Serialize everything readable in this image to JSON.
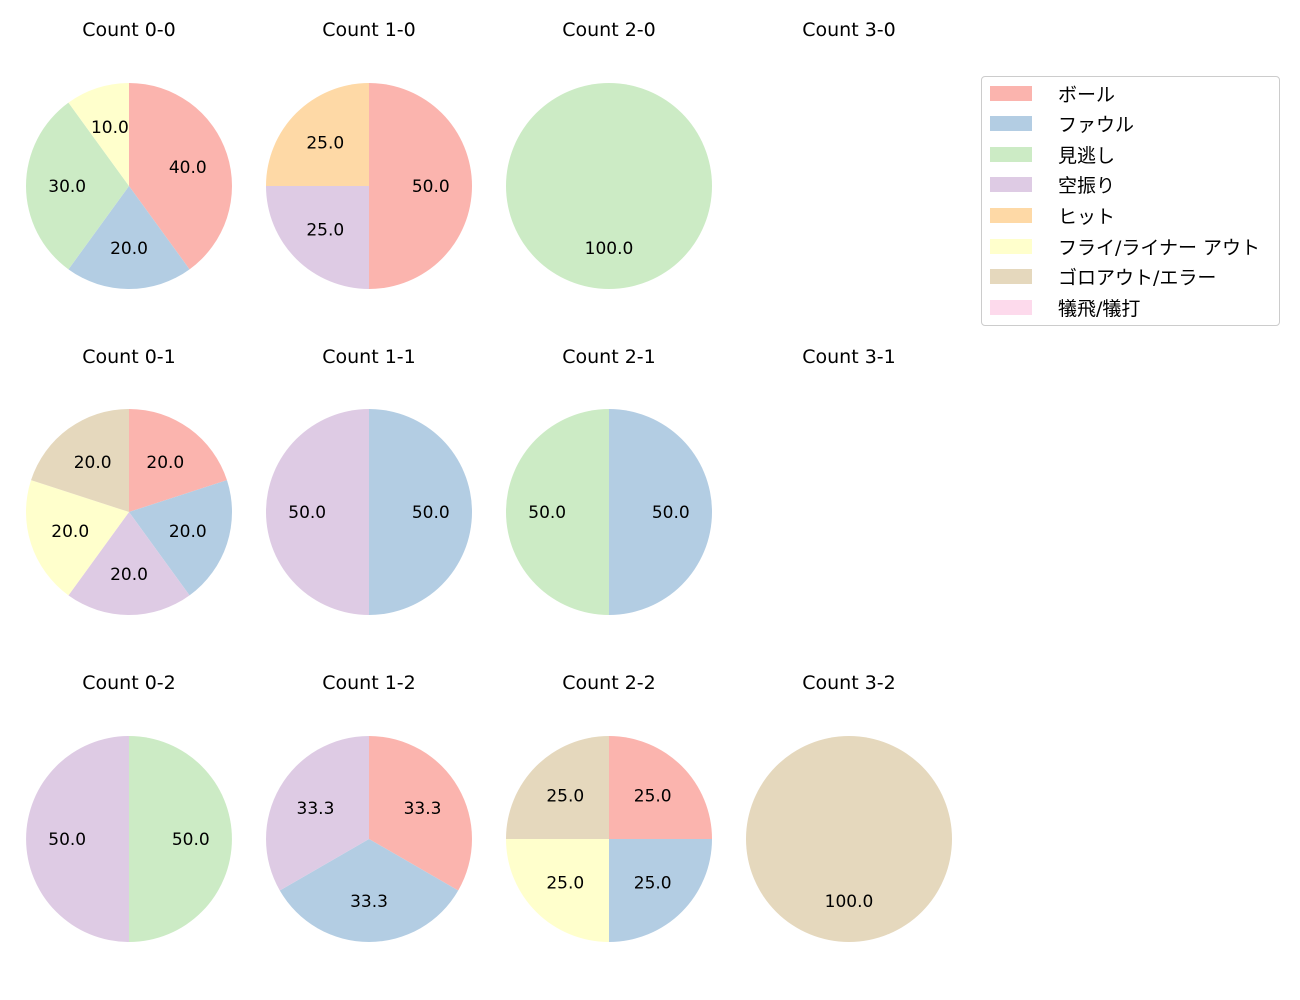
{
  "chart_data": {
    "type": "pie",
    "legend": {
      "position": "right",
      "entries": [
        "ボール",
        "ファウル",
        "見逃し",
        "空振り",
        "ヒット",
        "フライ/ライナー アウト",
        "ゴロアウト/エラー",
        "犠飛/犠打"
      ]
    },
    "colors": [
      "#fbb4ae",
      "#b3cde3",
      "#ccebc5",
      "#decbe4",
      "#fed9a6",
      "#ffffcc",
      "#e5d8bd",
      "#fddaec"
    ],
    "start_angle": 90,
    "direction": "clockwise",
    "charts": [
      {
        "title": "Count 0-0",
        "values": [
          40,
          20,
          30,
          0,
          0,
          10,
          0,
          0
        ]
      },
      {
        "title": "Count 1-0",
        "values": [
          50,
          0,
          0,
          25,
          25,
          0,
          0,
          0
        ]
      },
      {
        "title": "Count 2-0",
        "values": [
          0,
          0,
          100,
          0,
          0,
          0,
          0,
          0
        ]
      },
      {
        "title": "Count 3-0",
        "values": []
      },
      {
        "title": "Count 0-1",
        "values": [
          20,
          20,
          0,
          20,
          0,
          20,
          20,
          0
        ]
      },
      {
        "title": "Count 1-1",
        "values": [
          0,
          50,
          0,
          50,
          0,
          0,
          0,
          0
        ]
      },
      {
        "title": "Count 2-1",
        "values": [
          0,
          50,
          50,
          0,
          0,
          0,
          0,
          0
        ]
      },
      {
        "title": "Count 3-1",
        "values": []
      },
      {
        "title": "Count 0-2",
        "values": [
          0,
          0,
          50,
          50,
          0,
          0,
          0,
          0
        ]
      },
      {
        "title": "Count 1-2",
        "values": [
          33.3,
          33.3,
          0,
          33.3,
          0,
          0,
          0,
          0
        ]
      },
      {
        "title": "Count 2-2",
        "values": [
          25,
          25,
          0,
          0,
          0,
          25,
          25,
          0
        ]
      },
      {
        "title": "Count 3-2",
        "values": [
          0,
          0,
          0,
          0,
          0,
          0,
          100,
          0
        ]
      }
    ]
  }
}
